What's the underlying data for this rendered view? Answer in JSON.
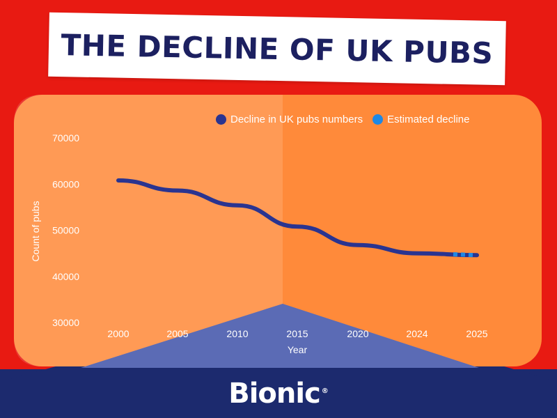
{
  "title": "THE DECLINE OF UK PUBS",
  "brand": {
    "name": "Bionic",
    "mark": "®"
  },
  "colors": {
    "background_red": "#e81a12",
    "panel_orange": "#ff8a3a",
    "navy": "#1c2a6e",
    "triangle_blue": "#5b6bb5",
    "line": "#2a3490",
    "estimated": "#1e88e5",
    "white": "#ffffff"
  },
  "chart_data": {
    "type": "line",
    "title": "THE DECLINE OF UK PUBS",
    "xlabel": "Year",
    "ylabel": "Count of pubs",
    "categories": [
      "2000",
      "2005",
      "2010",
      "2015",
      "2020",
      "2024",
      "2025"
    ],
    "ylim": [
      30000,
      70000
    ],
    "yticks": [
      "30000",
      "40000",
      "50000",
      "60000",
      "70000"
    ],
    "grid": false,
    "legend_position": "top-right",
    "series": [
      {
        "name": "Decline in UK pubs numbers",
        "values": [
          60800,
          58600,
          55400,
          50800,
          46800,
          45000,
          44600
        ],
        "color": "#2a3490"
      },
      {
        "name": "Estimated decline",
        "values": [
          null,
          null,
          null,
          null,
          null,
          44800,
          44600
        ],
        "color": "#1e88e5",
        "style": "dotted"
      }
    ]
  }
}
